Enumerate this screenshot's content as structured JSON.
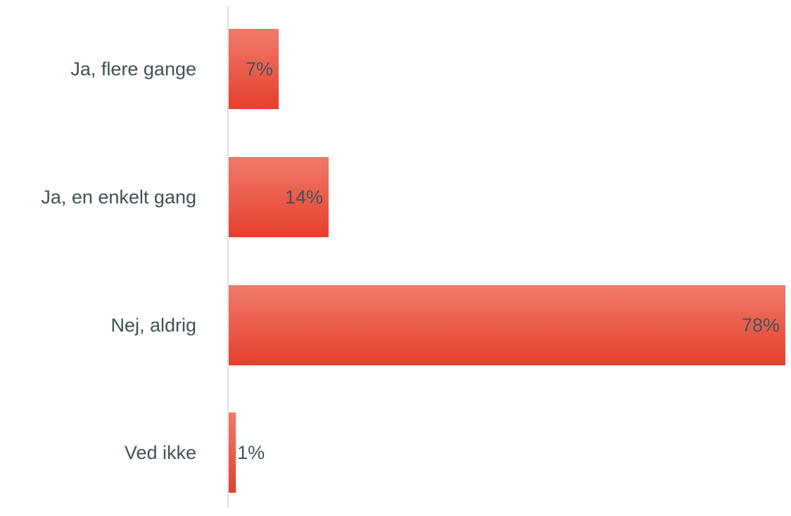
{
  "chart_data": {
    "type": "bar",
    "orientation": "horizontal",
    "categories": [
      "Ja, flere gange",
      "Ja, en enkelt gang",
      "Nej, aldrig",
      "Ved ikke"
    ],
    "values": [
      7,
      14,
      78,
      1
    ],
    "value_labels": [
      "7%",
      "14%",
      "78%",
      "1%"
    ],
    "unit": "%",
    "title": "",
    "xlabel": "",
    "ylabel": "",
    "xlim": [
      0,
      78
    ],
    "grid": false,
    "legend": "none",
    "colors": {
      "bar_top": "#f07a6a",
      "bar_bottom": "#e5402c",
      "label_text": "#3f5257",
      "value_text": "#3f5257",
      "axis_line": "#dde3e6"
    }
  }
}
